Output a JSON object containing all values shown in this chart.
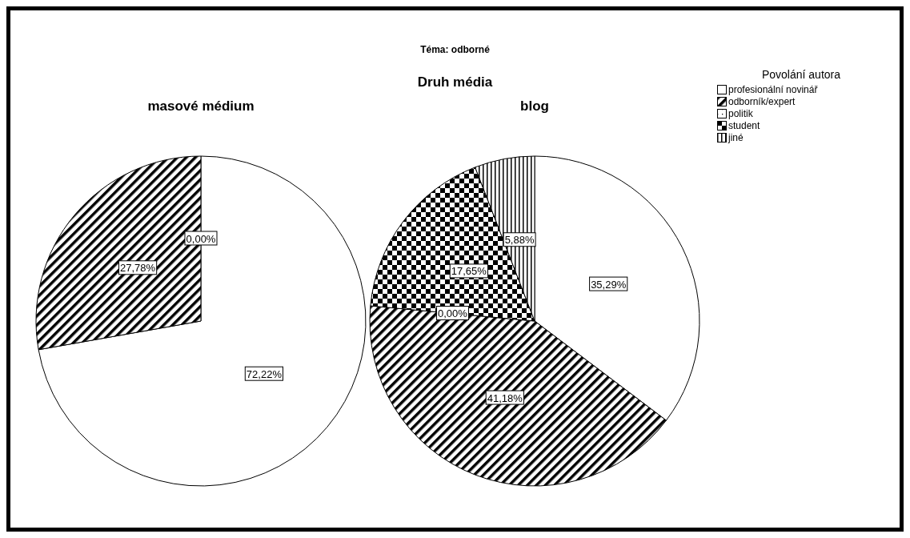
{
  "chart_data": {
    "type": "pie",
    "title": "Téma: odborné",
    "subtitle": "Druh média",
    "legend": "top right",
    "legend_title": "Povolání autora",
    "categories": [
      "profesionální novinář",
      "odborník/expert",
      "politik",
      "student",
      "jiné"
    ],
    "colors": [
      "#ffffff",
      "#000000",
      "#000000",
      "#000000",
      "#000000"
    ],
    "series": [
      {
        "name": "masové médium",
        "values": [
          72.22,
          27.78,
          0,
          null,
          null
        ],
        "value_labels": [
          "72,22%",
          "27,78%",
          "0,00%",
          null,
          null
        ]
      },
      {
        "name": "blog",
        "values": [
          35.29,
          41.18,
          0,
          17.65,
          5.88
        ],
        "value_labels": [
          "35,29%",
          "41,18%",
          "0,00%",
          "17,65%",
          "5,88%"
        ]
      }
    ]
  }
}
